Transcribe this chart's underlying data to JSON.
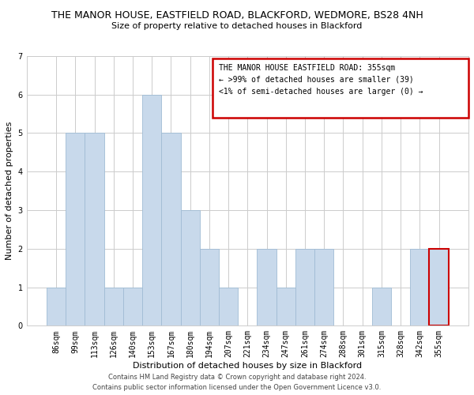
{
  "title": "THE MANOR HOUSE, EASTFIELD ROAD, BLACKFORD, WEDMORE, BS28 4NH",
  "subtitle": "Size of property relative to detached houses in Blackford",
  "xlabel": "Distribution of detached houses by size in Blackford",
  "ylabel": "Number of detached properties",
  "categories": [
    "86sqm",
    "99sqm",
    "113sqm",
    "126sqm",
    "140sqm",
    "153sqm",
    "167sqm",
    "180sqm",
    "194sqm",
    "207sqm",
    "221sqm",
    "234sqm",
    "247sqm",
    "261sqm",
    "274sqm",
    "288sqm",
    "301sqm",
    "315sqm",
    "328sqm",
    "342sqm",
    "355sqm"
  ],
  "values": [
    1,
    5,
    5,
    1,
    1,
    6,
    5,
    3,
    2,
    1,
    0,
    2,
    1,
    2,
    2,
    0,
    0,
    1,
    0,
    2,
    2
  ],
  "bar_color": "#c8d9eb",
  "bar_edgecolor": "#a0bcd4",
  "highlight_index": 20,
  "highlight_edgecolor": "#cc0000",
  "ylim": [
    0,
    7
  ],
  "yticks": [
    0,
    1,
    2,
    3,
    4,
    5,
    6,
    7
  ],
  "legend_title": "THE MANOR HOUSE EASTFIELD ROAD: 355sqm",
  "legend_line1": "← >99% of detached houses are smaller (39)",
  "legend_line2": "<1% of semi-detached houses are larger (0) →",
  "legend_box_color": "#cc0000",
  "footer_line1": "Contains HM Land Registry data © Crown copyright and database right 2024.",
  "footer_line2": "Contains public sector information licensed under the Open Government Licence v3.0.",
  "background_color": "#ffffff",
  "grid_color": "#cccccc",
  "title_fontsize": 9,
  "subtitle_fontsize": 8,
  "xlabel_fontsize": 8,
  "ylabel_fontsize": 8,
  "tick_fontsize": 7,
  "legend_fontsize": 7,
  "footer_fontsize": 6
}
